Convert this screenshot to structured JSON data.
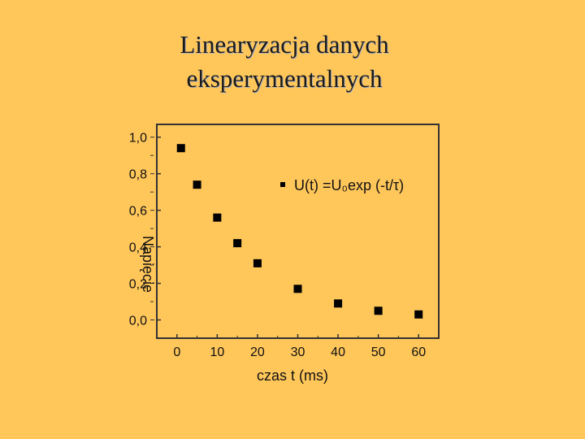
{
  "slide": {
    "title_line1": "Linearyzacja danych",
    "title_line2": "eksperymentalnych"
  },
  "colors": {
    "background": "#FFC65A",
    "plot_frame": "#333333",
    "marker": "#000000"
  },
  "chart_data": {
    "type": "scatter",
    "xlabel": "czas t (ms)",
    "ylabel": "Napięcie",
    "xlim": [
      -5,
      65
    ],
    "ylim": [
      -0.1,
      1.07
    ],
    "x_ticks": [
      "0",
      "10",
      "20",
      "30",
      "40",
      "50",
      "60"
    ],
    "y_ticks": [
      "0,0",
      "0,2",
      "0,4",
      "0,6",
      "0,8",
      "1,0"
    ],
    "grid": false,
    "legend_position": "top-right",
    "series": [
      {
        "name": "U(t) =U₀exp (-t/τ)",
        "marker": "square",
        "x": [
          1,
          5,
          10,
          15,
          20,
          30,
          40,
          50,
          60
        ],
        "y": [
          0.94,
          0.74,
          0.56,
          0.42,
          0.31,
          0.17,
          0.09,
          0.05,
          0.03
        ]
      }
    ]
  }
}
